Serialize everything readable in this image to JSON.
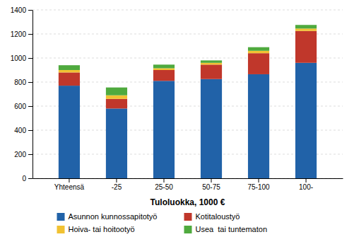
{
  "chart_data": {
    "type": "bar",
    "stacked": true,
    "x_label": "Tuloluokka, 1000 €",
    "categories": [
      "Yhteensä",
      "-25",
      "25-50",
      "50-75",
      "75-100",
      "100-"
    ],
    "series": [
      {
        "name": "Asunnon kunnossapitotyö",
        "color": "#2162a8",
        "values": [
          770,
          580,
          810,
          825,
          865,
          960
        ]
      },
      {
        "name": "Kotitaloustyö",
        "color": "#c0372b",
        "values": [
          110,
          80,
          90,
          120,
          175,
          265
        ]
      },
      {
        "name": "Hoiva- tai hoitootyö",
        "color": "#f1c232",
        "values": [
          20,
          30,
          15,
          15,
          20,
          20
        ]
      },
      {
        "name": "Usea  tai tuntematon",
        "color": "#4faa3e",
        "values": [
          40,
          65,
          30,
          20,
          30,
          30
        ]
      }
    ],
    "ylim": [
      0,
      1400
    ],
    "yticks": [
      0,
      200,
      400,
      600,
      800,
      1000,
      1200,
      1400
    ],
    "grid": true,
    "legend": "bottom"
  }
}
